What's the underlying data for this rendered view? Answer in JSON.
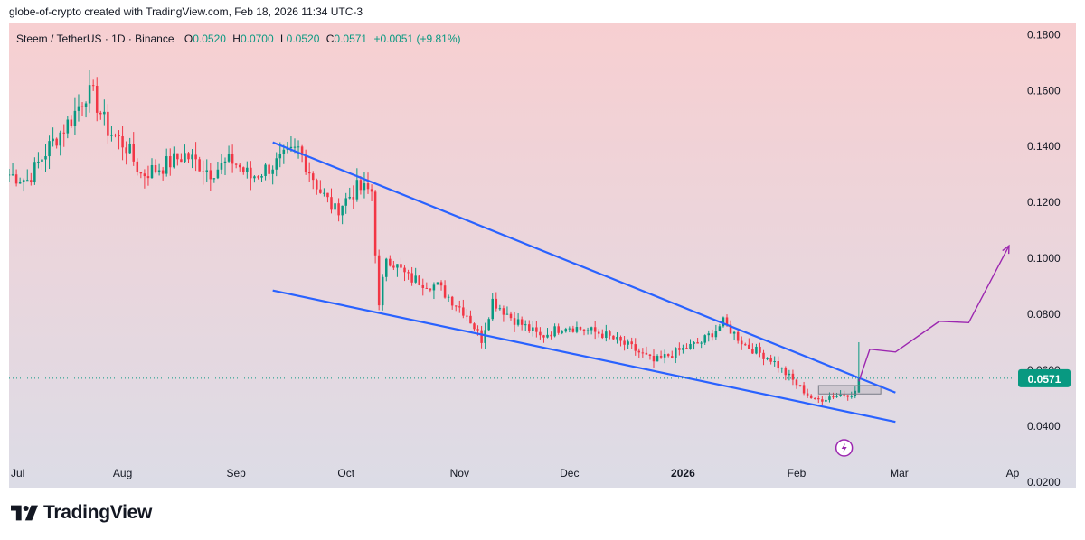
{
  "caption": "globe-of-crypto created with TradingView.com, Feb 18, 2026 11:34 UTC-3",
  "legend": {
    "symbol": "Steem / TetherUS · 1D · Binance",
    "o_label": "O",
    "o_value": "0.0520",
    "h_label": "H",
    "h_value": "0.0700",
    "l_label": "L",
    "l_value": "0.0520",
    "c_label": "C",
    "c_value": "0.0571",
    "change": "+0.0051 (+9.81%)"
  },
  "brand": {
    "name": "TradingView",
    "logo_icon": "tradingview-logo-icon"
  },
  "colors": {
    "up": "#089981",
    "down": "#f23645",
    "trendline": "#2962ff",
    "projection": "#9c27b0",
    "price_tag": "#089981"
  },
  "chart_data": {
    "type": "candlestick",
    "x_ticks": [
      "Jul",
      "Aug",
      "Sep",
      "Oct",
      "Nov",
      "Dec",
      "2026",
      "Feb",
      "Mar",
      "Ap"
    ],
    "y_ticks": [
      "0.1800",
      "0.1600",
      "0.1400",
      "0.1200",
      "0.1000",
      "0.0800",
      "0.0600",
      "0.0400",
      "0.0200"
    ],
    "ylim": [
      0.018,
      0.184
    ],
    "last_price": "0.0571",
    "close_path": [
      {
        "date": "2025-07-01",
        "close": 0.13
      },
      {
        "date": "2025-07-06",
        "close": 0.128
      },
      {
        "date": "2025-07-12",
        "close": 0.14
      },
      {
        "date": "2025-07-18",
        "close": 0.15
      },
      {
        "date": "2025-07-22",
        "close": 0.159
      },
      {
        "date": "2025-07-24",
        "close": 0.158
      },
      {
        "date": "2025-07-28",
        "close": 0.146
      },
      {
        "date": "2025-08-02",
        "close": 0.14
      },
      {
        "date": "2025-08-06",
        "close": 0.13
      },
      {
        "date": "2025-08-12",
        "close": 0.133
      },
      {
        "date": "2025-08-18",
        "close": 0.137
      },
      {
        "date": "2025-08-25",
        "close": 0.131
      },
      {
        "date": "2025-08-31",
        "close": 0.135
      },
      {
        "date": "2025-09-05",
        "close": 0.129
      },
      {
        "date": "2025-09-12",
        "close": 0.134
      },
      {
        "date": "2025-09-18",
        "close": 0.139
      },
      {
        "date": "2025-09-24",
        "close": 0.124
      },
      {
        "date": "2025-09-28",
        "close": 0.117
      },
      {
        "date": "2025-10-04",
        "close": 0.125
      },
      {
        "date": "2025-10-08",
        "close": 0.124
      },
      {
        "date": "2025-10-10",
        "close": 0.082
      },
      {
        "date": "2025-10-12",
        "close": 0.101
      },
      {
        "date": "2025-10-18",
        "close": 0.093
      },
      {
        "date": "2025-10-26",
        "close": 0.09
      },
      {
        "date": "2025-11-03",
        "close": 0.08
      },
      {
        "date": "2025-11-07",
        "close": 0.071
      },
      {
        "date": "2025-11-10",
        "close": 0.085
      },
      {
        "date": "2025-11-15",
        "close": 0.079
      },
      {
        "date": "2025-11-23",
        "close": 0.072
      },
      {
        "date": "2025-11-30",
        "close": 0.076
      },
      {
        "date": "2025-12-10",
        "close": 0.073
      },
      {
        "date": "2025-12-18",
        "close": 0.068
      },
      {
        "date": "2025-12-24",
        "close": 0.063
      },
      {
        "date": "2025-12-31",
        "close": 0.067
      },
      {
        "date": "2026-01-06",
        "close": 0.07
      },
      {
        "date": "2026-01-12",
        "close": 0.077
      },
      {
        "date": "2026-01-18",
        "close": 0.069
      },
      {
        "date": "2026-01-25",
        "close": 0.064
      },
      {
        "date": "2026-02-01",
        "close": 0.055
      },
      {
        "date": "2026-02-06",
        "close": 0.049
      },
      {
        "date": "2026-02-11",
        "close": 0.051
      },
      {
        "date": "2026-02-17",
        "close": 0.052
      },
      {
        "date": "2026-02-18",
        "close": 0.0571
      }
    ],
    "last_candle": {
      "date": "2026-02-18",
      "open": 0.052,
      "high": 0.07,
      "low": 0.052,
      "close": 0.0571
    },
    "trendlines": [
      {
        "name": "upper",
        "from": {
          "date": "2025-09-11",
          "price": 0.1415
        },
        "to": {
          "date": "2026-02-28",
          "price": 0.052
        }
      },
      {
        "name": "lower",
        "from": {
          "date": "2025-09-11",
          "price": 0.0885
        },
        "to": {
          "date": "2026-02-28",
          "price": 0.0415
        }
      }
    ],
    "projection": [
      {
        "date": "2026-02-18",
        "price": 0.056
      },
      {
        "date": "2026-02-21",
        "price": 0.0675
      },
      {
        "date": "2026-02-28",
        "price": 0.0665
      },
      {
        "date": "2026-03-12",
        "price": 0.0775
      },
      {
        "date": "2026-03-20",
        "price": 0.077
      },
      {
        "date": "2026-03-31",
        "price": 0.1045
      }
    ],
    "consolidation_box": {
      "from": "2026-02-07",
      "to": "2026-02-24",
      "low": 0.0515,
      "high": 0.0545
    }
  }
}
